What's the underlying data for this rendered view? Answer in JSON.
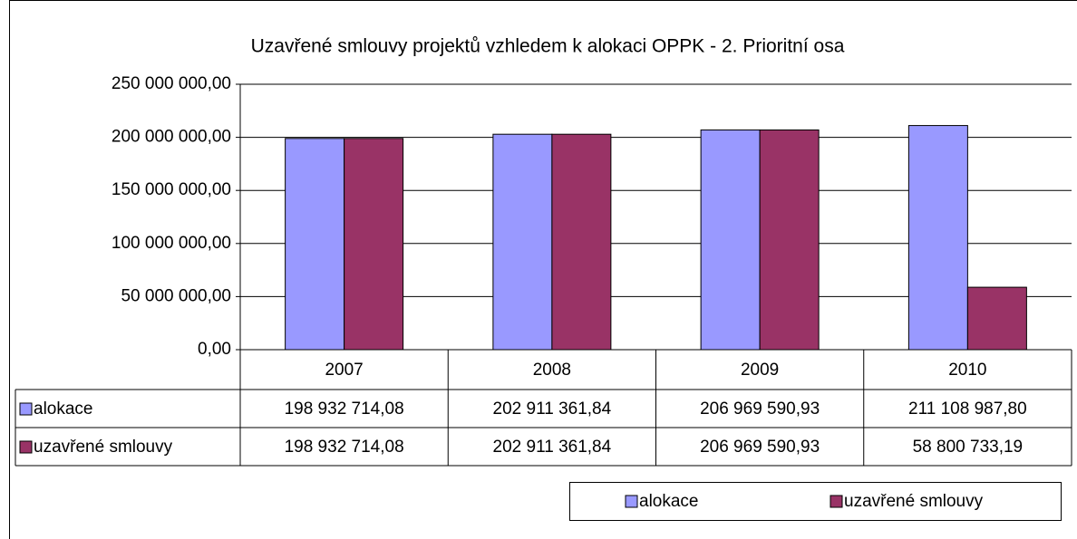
{
  "chart_data": {
    "type": "bar",
    "title": "Uzavřené smlouvy projektů vzhledem k alokaci OPPK - 2. Prioritní osa",
    "categories": [
      "2007",
      "2008",
      "2009",
      "2010"
    ],
    "series": [
      {
        "name": "alokace",
        "color": "#9999ff",
        "values": [
          198932714.08,
          202911361.84,
          206969590.93,
          211108987.8
        ],
        "value_labels": [
          "198 932 714,08",
          "202 911 361,84",
          "206 969 590,93",
          "211 108 987,80"
        ]
      },
      {
        "name": "uzavřené smlouvy",
        "color": "#993366",
        "values": [
          198932714.08,
          202911361.84,
          206969590.93,
          58800733.19
        ],
        "value_labels": [
          "198 932 714,08",
          "202 911 361,84",
          "206 969 590,93",
          "58 800 733,19"
        ]
      }
    ],
    "ylim": [
      0,
      250000000
    ],
    "yticks": [
      {
        "value": 0,
        "label": "0,00"
      },
      {
        "value": 50000000,
        "label": "50 000 000,00"
      },
      {
        "value": 100000000,
        "label": "100 000 000,00"
      },
      {
        "value": 150000000,
        "label": "150 000 000,00"
      },
      {
        "value": 200000000,
        "label": "200 000 000,00"
      },
      {
        "value": 250000000,
        "label": "250 000 000,00"
      }
    ],
    "grid": true,
    "legend": "bottom-right",
    "data_table": true
  }
}
